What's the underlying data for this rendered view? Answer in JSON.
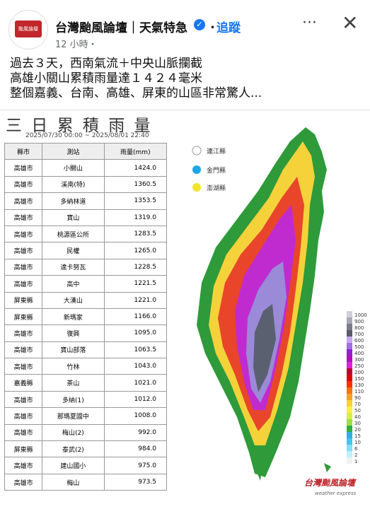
{
  "header": {
    "page_name": "台灣颱風論壇｜天氣特急",
    "follow": "追蹤",
    "time": "12 小時・"
  },
  "post": {
    "lines": [
      "過去３天，西南氣流＋中央山脈攔截",
      "高雄小關山累積雨量達１４２４毫米",
      "整個嘉義、台南、高雄、屏東的山區非常驚人..."
    ]
  },
  "image": {
    "title": "三 日 累 積 雨 量",
    "date_range": "2025/07/30 00:00 ~ 2025/08/01 22:40",
    "table": {
      "headers": [
        "縣市",
        "測站",
        "雨量(mm)"
      ],
      "rows": [
        [
          "高雄市",
          "小關山",
          "1424.0"
        ],
        [
          "高雄市",
          "溪南(特)",
          "1360.5"
        ],
        [
          "高雄市",
          "多納林道",
          "1353.5"
        ],
        [
          "高雄市",
          "寶山",
          "1319.0"
        ],
        [
          "高雄市",
          "桃源區公所",
          "1283.5"
        ],
        [
          "高雄市",
          "民權",
          "1265.0"
        ],
        [
          "高雄市",
          "達卡努瓦",
          "1228.5"
        ],
        [
          "高雄市",
          "高中",
          "1221.5"
        ],
        [
          "屏東縣",
          "大漢山",
          "1221.0"
        ],
        [
          "屏東縣",
          "新瑪家",
          "1166.0"
        ],
        [
          "高雄市",
          "復興",
          "1095.0"
        ],
        [
          "高雄市",
          "寶山部落",
          "1063.5"
        ],
        [
          "高雄市",
          "竹林",
          "1043.0"
        ],
        [
          "嘉義縣",
          "茶山",
          "1021.0"
        ],
        [
          "高雄市",
          "多納(1)",
          "1012.0"
        ],
        [
          "高雄市",
          "那瑪夏國中",
          "1008.0"
        ],
        [
          "高雄市",
          "梅山(2)",
          "992.0"
        ],
        [
          "屏東縣",
          "泰武(2)",
          "984.0"
        ],
        [
          "高雄市",
          "建山國小",
          "975.0"
        ],
        [
          "高雄市",
          "梅山",
          "973.5"
        ]
      ]
    },
    "islands": [
      "連江縣",
      "金門縣",
      "澎湖縣"
    ],
    "scale": [
      "1000",
      "900",
      "800",
      "700",
      "600",
      "500",
      "400",
      "300",
      "250",
      "200",
      "150",
      "130",
      "110",
      "90",
      "70",
      "50",
      "40",
      "30",
      "20",
      "15",
      "10",
      "6",
      "2",
      "1"
    ],
    "watermark": "台灣颱風論壇",
    "watermark_sub": "weather express"
  }
}
